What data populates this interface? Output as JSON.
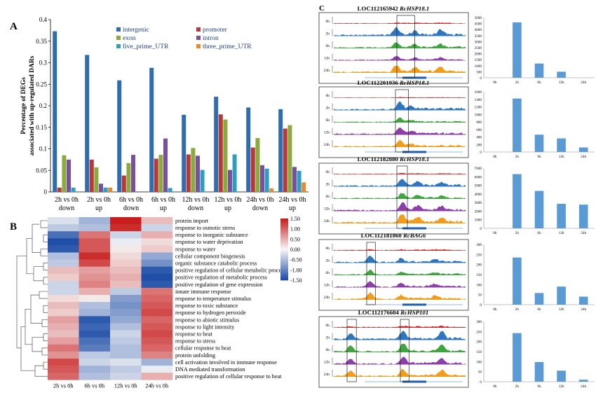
{
  "panels": {
    "a": "A",
    "b": "B",
    "c": "C"
  },
  "colors": {
    "intergenic": "#2e6db4",
    "promoter": "#b73a3a",
    "exon": "#8aaa3c",
    "intron": "#7a4f9e",
    "five_prime_UTR": "#2c9fc0",
    "three_prime_UTR": "#e8892c",
    "bar_c": "#5b9bd5",
    "track_0h": "#d62728",
    "track_2h": "#2f76c0",
    "track_6h": "#3fa63f",
    "track_12h": "#8c3fa8",
    "track_24h": "#f39c1c",
    "heat_high": "#c81e1e",
    "heat_mid": "#f7f7f7",
    "heat_low": "#1f4fa8"
  },
  "chart_data": [
    {
      "type": "bar",
      "panel": "A",
      "ylabel": "Percentage of DEGs associated with up-regulated DARs",
      "ylim": [
        0,
        0.4
      ],
      "yticks": [
        0,
        0.05,
        0.1,
        0.15,
        0.2,
        0.25,
        0.3,
        0.35,
        0.4
      ],
      "categories": [
        [
          "2h vs 0h",
          "down"
        ],
        [
          "2h vs 0h",
          "up"
        ],
        [
          "6h vs 0h",
          "down"
        ],
        [
          "6h vs 0h",
          "up"
        ],
        [
          "12h vs 0h",
          "down"
        ],
        [
          "12h vs 0h",
          "up"
        ],
        [
          "24h vs 0h",
          "down"
        ],
        [
          "24h vs 0h",
          "up"
        ]
      ],
      "legend_position": "top-right",
      "series": [
        {
          "name": "intergenic",
          "values": [
            0.373,
            0.318,
            0.259,
            0.288,
            0.179,
            0.221,
            0.196,
            0.192
          ]
        },
        {
          "name": "promoter",
          "values": [
            0.01,
            0.075,
            0.038,
            0.077,
            0.087,
            0.18,
            0.103,
            0.147
          ]
        },
        {
          "name": "exon",
          "values": [
            0.085,
            0.057,
            0.067,
            0.086,
            0.102,
            0.168,
            0.125,
            0.155
          ]
        },
        {
          "name": "intron",
          "values": [
            0.075,
            0.019,
            0.086,
            0.124,
            0.084,
            0.051,
            0.062,
            0.058
          ]
        },
        {
          "name": "five_prime_UTR",
          "values": [
            0.01,
            0.01,
            0.0,
            0.009,
            0.051,
            0.087,
            0.054,
            0.049
          ]
        },
        {
          "name": "three_prime_UTR",
          "values": [
            0.0,
            0.01,
            0.0,
            0.0,
            0.0,
            0.0,
            0.008,
            0.022
          ]
        }
      ]
    },
    {
      "type": "heatmap",
      "panel": "B",
      "columns": [
        "2h vs 0h",
        "6h vs 0h",
        "12h vs 0h",
        "24h vs 0h"
      ],
      "rows": [
        "protein import",
        "response to osmotic stress",
        "response to inorganic substance",
        "response to water deprivation",
        "response to water",
        "cellular component biogenesis",
        "organic substance catabolic process",
        "positive regulation of cellular metabolic process",
        "positive regulation of metabolic process",
        "positive regulation of gene expression",
        "innate immune response",
        "response to temperature stimulus",
        "response to toxic substance",
        "response to hydrogen peroxide",
        "response to abiotic stimulus",
        "response to light intensity",
        "response to heat",
        "response to stress",
        "cellular response to heat",
        "protein unfolding",
        "cell activation involved in immune response",
        "DNA mediated transformation",
        "positive regulation of cellular response to heat"
      ],
      "values": [
        [
          -0.2,
          -0.6,
          1.5,
          0.4
        ],
        [
          -0.4,
          -0.5,
          1.4,
          -0.3
        ],
        [
          -1.2,
          0.9,
          -0.3,
          0.5
        ],
        [
          -1.5,
          1.1,
          -0.1,
          0.2
        ],
        [
          -1.4,
          1.1,
          0.1,
          0.3
        ],
        [
          -0.5,
          1.4,
          0.2,
          -0.7
        ],
        [
          -0.4,
          1.2,
          0.3,
          -0.9
        ],
        [
          0.4,
          0.6,
          0.4,
          -1.4
        ],
        [
          0.3,
          0.7,
          0.5,
          -1.5
        ],
        [
          -0.3,
          0.8,
          0.4,
          -1.4
        ],
        [
          -0.3,
          0.5,
          -0.4,
          0.9
        ],
        [
          0.2,
          0.1,
          -0.8,
          1.0
        ],
        [
          0.4,
          -0.5,
          -0.9,
          1.1
        ],
        [
          0.3,
          -0.6,
          -0.8,
          1.2
        ],
        [
          0.6,
          -1.4,
          -0.7,
          1.0
        ],
        [
          0.5,
          -1.3,
          -0.5,
          1.1
        ],
        [
          0.4,
          -1.4,
          -0.3,
          1.2
        ],
        [
          0.6,
          -1.2,
          -0.4,
          1.1
        ],
        [
          0.9,
          -1.1,
          -0.5,
          1.0
        ],
        [
          0.7,
          -0.4,
          -0.5,
          0.8
        ],
        [
          1.2,
          -0.3,
          -0.2,
          -0.6
        ],
        [
          1.1,
          -0.6,
          -0.4,
          -0.1
        ],
        [
          1.0,
          -0.5,
          -0.3,
          0.5
        ]
      ],
      "colorbar_ticks": [
        "1.50",
        "1.00",
        "0.50",
        "0.00",
        "-0.50",
        "-1.00",
        "-1.50"
      ],
      "vrange": [
        -1.5,
        1.5
      ]
    },
    {
      "type": "bar",
      "panel": "C",
      "title": "LOC112165942 RcHSP18.1",
      "categories": [
        "0h",
        "2h",
        "6h",
        "12h",
        "24h"
      ],
      "values": [
        0,
        4600,
        1180,
        500,
        0
      ],
      "ylim": [
        0,
        5000
      ],
      "yticks": [
        0,
        500,
        1000,
        1500,
        2000,
        2500,
        3000,
        3500,
        4000,
        4500,
        5000
      ]
    },
    {
      "type": "bar",
      "panel": "C",
      "title": "LOC112201936 RcHSP18.1",
      "categories": [
        "0h",
        "2h",
        "6h",
        "12h",
        "24h"
      ],
      "values": [
        0,
        1420,
        460,
        360,
        120
      ],
      "ylim": [
        0,
        1600
      ],
      "yticks": [
        0,
        200,
        400,
        600,
        800,
        1000,
        1200,
        1400,
        1600
      ]
    },
    {
      "type": "bar",
      "panel": "C",
      "title": "LOC112182880 RcHSP18.1",
      "categories": [
        "0h",
        "2h",
        "6h",
        "12h",
        "24h"
      ],
      "values": [
        0,
        6300,
        4350,
        2850,
        2750
      ],
      "ylim": [
        0,
        7000
      ],
      "yticks": [
        0,
        1000,
        2000,
        3000,
        4000,
        5000,
        6000,
        7000
      ]
    },
    {
      "type": "bar",
      "panel": "C",
      "title": "LOC112181860 RcBAG6",
      "categories": [
        "0h",
        "2h",
        "6h",
        "12h",
        "24h"
      ],
      "values": [
        0,
        235,
        58,
        90,
        40
      ],
      "ylim": [
        0,
        300
      ],
      "yticks": [
        0,
        50,
        100,
        150,
        200,
        250,
        300
      ]
    },
    {
      "type": "bar",
      "panel": "C",
      "title": "LOC112176604 RcHSP101",
      "categories": [
        "0h",
        "2h",
        "6h",
        "12h",
        "24h"
      ],
      "values": [
        0,
        242,
        98,
        55,
        10
      ],
      "ylim": [
        0,
        300
      ],
      "yticks": [
        0,
        50,
        100,
        150,
        200,
        250,
        300
      ]
    }
  ],
  "tracks": [
    {
      "labels": [
        "0h",
        "2h",
        "6h",
        "12h",
        "24h"
      ]
    },
    {
      "labels": [
        "0h",
        "2h",
        "6h",
        "12h",
        "24h"
      ]
    },
    {
      "labels": [
        "0h",
        "2h",
        "6h",
        "12h",
        "24h"
      ]
    },
    {
      "labels": [
        "0h",
        "2h",
        "6h",
        "12h",
        "24h"
      ]
    },
    {
      "labels": [
        "0h",
        "2h",
        "6h",
        "12h",
        "24h"
      ]
    }
  ]
}
